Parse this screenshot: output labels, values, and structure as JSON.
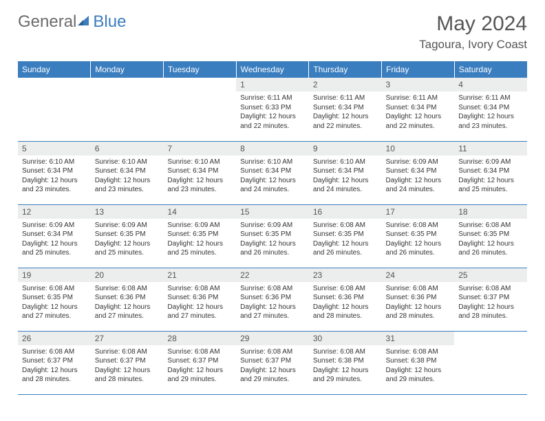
{
  "logo": {
    "text_general": "General",
    "text_blue": "Blue",
    "icon_color": "#3a7ebf",
    "text_general_color": "#6b6b6b"
  },
  "header": {
    "month_title": "May 2024",
    "location": "Tagoura, Ivory Coast",
    "title_color": "#555555"
  },
  "theme": {
    "header_bg": "#3a7ebf",
    "header_fg": "#ffffff",
    "daynum_bg": "#eceded",
    "daynum_fg": "#555555",
    "border_color": "#3a7ebf",
    "body_text": "#333333"
  },
  "weekdays": [
    "Sunday",
    "Monday",
    "Tuesday",
    "Wednesday",
    "Thursday",
    "Friday",
    "Saturday"
  ],
  "weeks": [
    [
      null,
      null,
      null,
      {
        "n": "1",
        "sr": "6:11 AM",
        "ss": "6:33 PM",
        "dl": "12 hours and 22 minutes."
      },
      {
        "n": "2",
        "sr": "6:11 AM",
        "ss": "6:34 PM",
        "dl": "12 hours and 22 minutes."
      },
      {
        "n": "3",
        "sr": "6:11 AM",
        "ss": "6:34 PM",
        "dl": "12 hours and 22 minutes."
      },
      {
        "n": "4",
        "sr": "6:11 AM",
        "ss": "6:34 PM",
        "dl": "12 hours and 23 minutes."
      }
    ],
    [
      {
        "n": "5",
        "sr": "6:10 AM",
        "ss": "6:34 PM",
        "dl": "12 hours and 23 minutes."
      },
      {
        "n": "6",
        "sr": "6:10 AM",
        "ss": "6:34 PM",
        "dl": "12 hours and 23 minutes."
      },
      {
        "n": "7",
        "sr": "6:10 AM",
        "ss": "6:34 PM",
        "dl": "12 hours and 23 minutes."
      },
      {
        "n": "8",
        "sr": "6:10 AM",
        "ss": "6:34 PM",
        "dl": "12 hours and 24 minutes."
      },
      {
        "n": "9",
        "sr": "6:10 AM",
        "ss": "6:34 PM",
        "dl": "12 hours and 24 minutes."
      },
      {
        "n": "10",
        "sr": "6:09 AM",
        "ss": "6:34 PM",
        "dl": "12 hours and 24 minutes."
      },
      {
        "n": "11",
        "sr": "6:09 AM",
        "ss": "6:34 PM",
        "dl": "12 hours and 25 minutes."
      }
    ],
    [
      {
        "n": "12",
        "sr": "6:09 AM",
        "ss": "6:34 PM",
        "dl": "12 hours and 25 minutes."
      },
      {
        "n": "13",
        "sr": "6:09 AM",
        "ss": "6:35 PM",
        "dl": "12 hours and 25 minutes."
      },
      {
        "n": "14",
        "sr": "6:09 AM",
        "ss": "6:35 PM",
        "dl": "12 hours and 25 minutes."
      },
      {
        "n": "15",
        "sr": "6:09 AM",
        "ss": "6:35 PM",
        "dl": "12 hours and 26 minutes."
      },
      {
        "n": "16",
        "sr": "6:08 AM",
        "ss": "6:35 PM",
        "dl": "12 hours and 26 minutes."
      },
      {
        "n": "17",
        "sr": "6:08 AM",
        "ss": "6:35 PM",
        "dl": "12 hours and 26 minutes."
      },
      {
        "n": "18",
        "sr": "6:08 AM",
        "ss": "6:35 PM",
        "dl": "12 hours and 26 minutes."
      }
    ],
    [
      {
        "n": "19",
        "sr": "6:08 AM",
        "ss": "6:35 PM",
        "dl": "12 hours and 27 minutes."
      },
      {
        "n": "20",
        "sr": "6:08 AM",
        "ss": "6:36 PM",
        "dl": "12 hours and 27 minutes."
      },
      {
        "n": "21",
        "sr": "6:08 AM",
        "ss": "6:36 PM",
        "dl": "12 hours and 27 minutes."
      },
      {
        "n": "22",
        "sr": "6:08 AM",
        "ss": "6:36 PM",
        "dl": "12 hours and 27 minutes."
      },
      {
        "n": "23",
        "sr": "6:08 AM",
        "ss": "6:36 PM",
        "dl": "12 hours and 28 minutes."
      },
      {
        "n": "24",
        "sr": "6:08 AM",
        "ss": "6:36 PM",
        "dl": "12 hours and 28 minutes."
      },
      {
        "n": "25",
        "sr": "6:08 AM",
        "ss": "6:37 PM",
        "dl": "12 hours and 28 minutes."
      }
    ],
    [
      {
        "n": "26",
        "sr": "6:08 AM",
        "ss": "6:37 PM",
        "dl": "12 hours and 28 minutes."
      },
      {
        "n": "27",
        "sr": "6:08 AM",
        "ss": "6:37 PM",
        "dl": "12 hours and 28 minutes."
      },
      {
        "n": "28",
        "sr": "6:08 AM",
        "ss": "6:37 PM",
        "dl": "12 hours and 29 minutes."
      },
      {
        "n": "29",
        "sr": "6:08 AM",
        "ss": "6:37 PM",
        "dl": "12 hours and 29 minutes."
      },
      {
        "n": "30",
        "sr": "6:08 AM",
        "ss": "6:38 PM",
        "dl": "12 hours and 29 minutes."
      },
      {
        "n": "31",
        "sr": "6:08 AM",
        "ss": "6:38 PM",
        "dl": "12 hours and 29 minutes."
      },
      null
    ]
  ],
  "labels": {
    "sunrise": "Sunrise:",
    "sunset": "Sunset:",
    "daylight": "Daylight:"
  }
}
